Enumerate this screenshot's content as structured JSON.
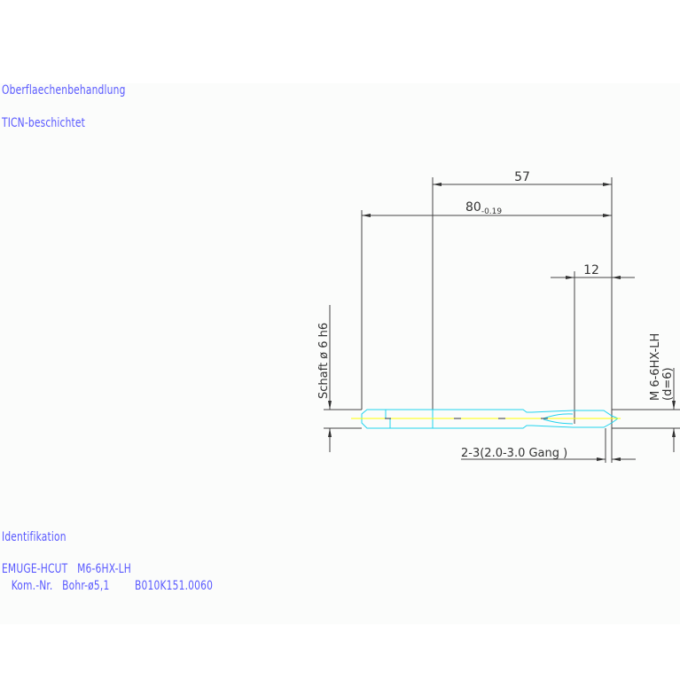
{
  "notes": {
    "surface_heading": "Oberflaechenbehandlung",
    "surface_value": "TICN-beschichtet",
    "ident_heading": "Identifikation",
    "ident_line1": "EMUGE-HCUT   M6-6HX-LH",
    "ident_line2": "   Kom.-Nr.   Bohr-ø5,1        B010K151.0060"
  },
  "dimensions": {
    "thread_length": "57",
    "total_length": "80",
    "total_length_tolerance": "-0.19",
    "chamfer_length": "12",
    "shank": "Schaft  ø 6  h6",
    "thread_spec": "M 6-6HX-LH",
    "thread_diameter": "(d=6)",
    "chamfer_threads": "2-3(2.0-3.0 Gang  )"
  },
  "colors": {
    "note_text": "#5a5aff",
    "tool_outline": "#22d3ee",
    "center_line": "#ffff00",
    "dimension_lines": "#333333"
  }
}
